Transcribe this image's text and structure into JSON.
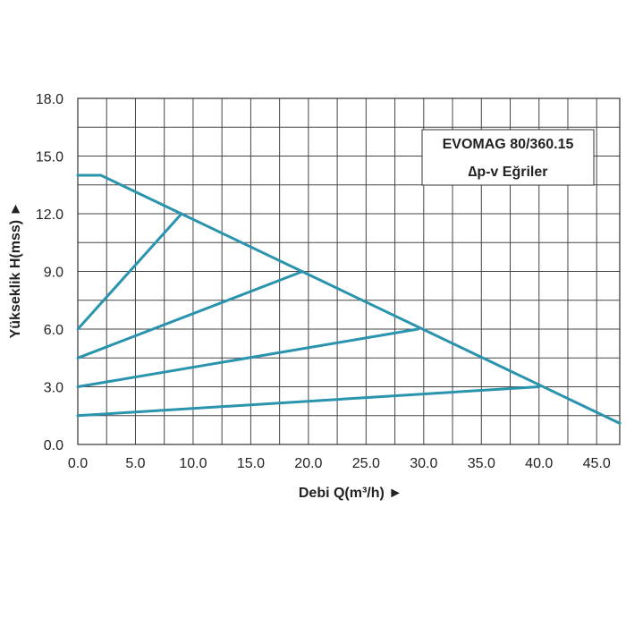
{
  "chart_data": {
    "type": "line",
    "title": "EVOMAG 80/360.15",
    "subtitle": "∆p-v Eğriler",
    "xlabel": "Debi Q(m³/h) ►",
    "ylabel": "Yükseklik H(mss) ►",
    "xlim": [
      0,
      47
    ],
    "ylim": [
      0,
      18
    ],
    "grid": true,
    "legend": "top-right",
    "x_ticks": [
      "0.0",
      "5.0",
      "10.0",
      "15.0",
      "20.0",
      "25.0",
      "30.0",
      "35.0",
      "40.0",
      "45.0"
    ],
    "y_ticks": [
      "0.0",
      "3.0",
      "6.0",
      "9.0",
      "12.0",
      "15.0",
      "18.0"
    ],
    "line_color": "#2a93ad",
    "series": [
      {
        "x": [
          0,
          2,
          47
        ],
        "y": [
          14,
          14,
          1.1
        ]
      },
      {
        "x": [
          0,
          9
        ],
        "y": [
          6,
          12
        ]
      },
      {
        "x": [
          0,
          19.5
        ],
        "y": [
          4.5,
          9
        ]
      },
      {
        "x": [
          0,
          29.5
        ],
        "y": [
          3,
          6
        ]
      },
      {
        "x": [
          0,
          40
        ],
        "y": [
          1.5,
          3
        ]
      }
    ]
  }
}
